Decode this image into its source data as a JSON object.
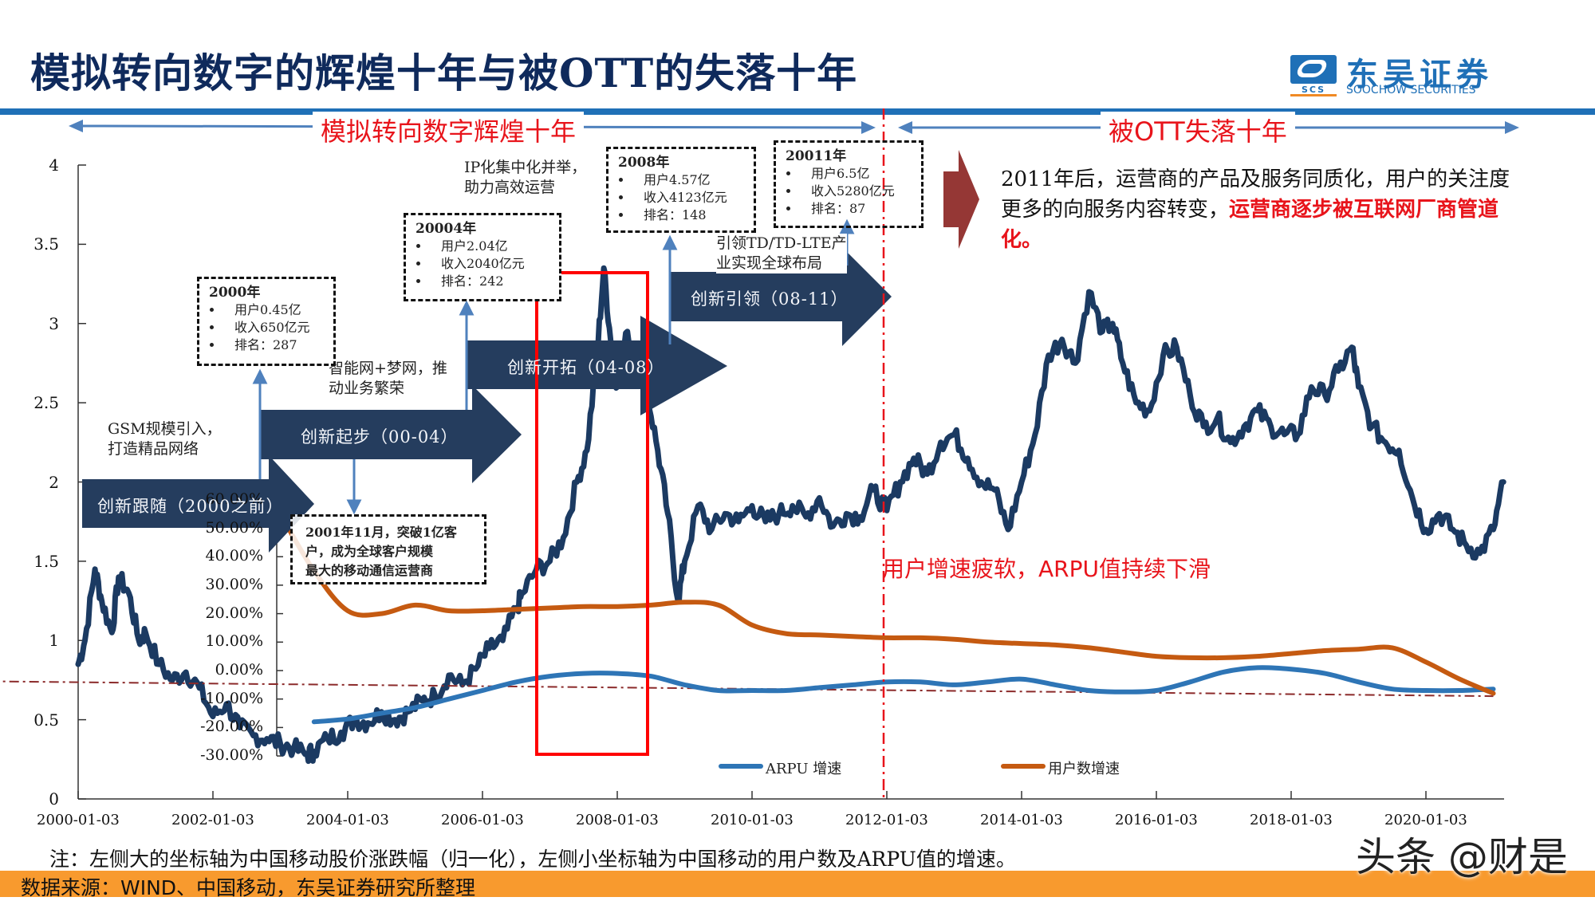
{
  "header": {
    "title": "模拟转向数字的辉煌十年与被OTT的失落十年",
    "logo": {
      "cn": "东吴证券",
      "en": "SOOCHOW SECURITIES",
      "abbr": "SCS"
    },
    "rule_color": "#1f70b7"
  },
  "eras": [
    {
      "label": "模拟转向数字辉煌十年",
      "direction": "both"
    },
    {
      "label": "被OTT失落十年",
      "direction": "both"
    }
  ],
  "phases": [
    {
      "label": "创新跟随（2000之前）"
    },
    {
      "label": "创新起步（00-04）"
    },
    {
      "label": "创新开拓（04-08）"
    },
    {
      "label": "创新引领（08-11）"
    }
  ],
  "phase_notes": [
    {
      "text": [
        "GSM规模引入，",
        "打造精品网络"
      ]
    },
    {
      "text": [
        "智能网+梦网，推",
        "动业务繁荣"
      ]
    },
    {
      "text": [
        "IP化集中化并举，",
        "助力高效运营"
      ]
    },
    {
      "text": [
        "引领TD/TD-LTE产",
        "业实现全球布局"
      ]
    }
  ],
  "milestones": [
    {
      "year": "2000年",
      "items": [
        "用户0.45亿",
        "收入650亿元",
        "排名：287"
      ]
    },
    {
      "year": "20004年",
      "items": [
        "用户2.04亿",
        "收入2040亿元",
        "排名：242"
      ]
    },
    {
      "year": "2008年",
      "items": [
        "用户4.57亿",
        "收入4123亿元",
        "排名：148"
      ]
    },
    {
      "year": "20011年",
      "items": [
        "用户6.5亿",
        "收入5280亿元",
        "排名：87"
      ]
    }
  ],
  "event_box": {
    "text": [
      "2001年11月，突破1亿客",
      "户，成为全球客户规模",
      "最大的移动通信运营商"
    ]
  },
  "summary": {
    "normal": "2011年后，运营商的产品及服务同质化，用户的关注度更多的向服务内容转变，",
    "highlight": "运营商逐步被互联网厂商管道化。"
  },
  "decline_note": "用户增速疲软，ARPU值持续下滑",
  "footnote": "注：左侧大的坐标轴为中国移动股价涨跌幅（归一化），左侧小坐标轴为中国移动的用户数及ARPU值的增速。",
  "source": "数据来源：WIND、中国移动，东吴证券研究所整理",
  "watermark": "头条 @财是",
  "colors": {
    "price": "#1b3a62",
    "arpu": "#2e75b6",
    "users": "#c55a11",
    "phase_arrow": "#253d5e",
    "highlight_box": "#ff0000",
    "divider": "#e8141b",
    "trend": "#8b2a2a",
    "big_arrow": "#953735"
  },
  "chart_data": [
    {
      "type": "line",
      "title": "中国移动股价涨跌幅（归一化）",
      "xlabel": "",
      "ylabel": "",
      "x_ticks": [
        "2000-01-03",
        "2002-01-03",
        "2004-01-03",
        "2006-01-03",
        "2008-01-03",
        "2010-01-03",
        "2012-01-03",
        "2014-01-03",
        "2016-01-03",
        "2018-01-03",
        "2020-01-03"
      ],
      "y_ticks": [
        "0",
        "0.5",
        "1",
        "1.5",
        "2",
        "2.5",
        "3",
        "3.5",
        "4"
      ],
      "ylim": [
        0,
        4
      ],
      "grid": false,
      "series": [
        {
          "name": "中国移动股价（归一化）",
          "x": [
            0,
            0.1,
            0.25,
            0.35,
            0.5,
            0.6,
            0.75,
            0.9,
            1.0,
            1.2,
            1.4,
            1.6,
            1.8,
            2.0,
            2.2,
            2.4,
            2.6,
            2.8,
            3.0,
            3.2,
            3.4,
            3.5,
            3.7,
            3.9,
            4.1,
            4.3,
            4.5,
            4.7,
            4.9,
            5.1,
            5.3,
            5.5,
            5.7,
            5.9,
            6.1,
            6.3,
            6.5,
            6.6,
            6.8,
            7.0,
            7.2,
            7.4,
            7.55,
            7.7,
            7.8,
            7.9,
            8.0,
            8.15,
            8.3,
            8.45,
            8.6,
            8.75,
            8.9,
            9.0,
            9.2,
            9.4,
            9.6,
            9.8,
            10.0,
            10.2,
            10.4,
            10.6,
            10.8,
            11.0,
            11.2,
            11.4,
            11.6,
            11.8,
            12.0,
            12.2,
            12.4,
            12.6,
            12.8,
            13.0,
            13.2,
            13.4,
            13.6,
            13.8,
            14.0,
            14.2,
            14.4,
            14.6,
            14.8,
            15.0,
            15.2,
            15.35,
            15.5,
            15.7,
            15.9,
            16.1,
            16.3,
            16.5,
            16.7,
            16.9,
            17.1,
            17.3,
            17.5,
            17.7,
            17.9,
            18.1,
            18.3,
            18.5,
            18.7,
            18.9,
            19.0,
            19.2,
            19.4,
            19.6,
            19.8,
            20.0,
            20.2,
            20.4,
            20.6,
            20.8,
            21.0,
            21.15
          ],
          "values": [
            0.85,
            1.0,
            1.45,
            1.25,
            1.05,
            1.4,
            1.3,
            1.0,
            1.05,
            0.85,
            0.75,
            0.8,
            0.7,
            0.52,
            0.6,
            0.45,
            0.4,
            0.38,
            0.35,
            0.32,
            0.28,
            0.3,
            0.38,
            0.42,
            0.5,
            0.48,
            0.55,
            0.5,
            0.55,
            0.62,
            0.65,
            0.78,
            0.72,
            0.82,
            0.95,
            1.0,
            1.2,
            1.3,
            1.45,
            1.5,
            1.65,
            2.0,
            2.2,
            2.8,
            3.35,
            2.9,
            2.6,
            2.95,
            2.75,
            2.55,
            2.2,
            1.8,
            1.25,
            1.5,
            1.85,
            1.7,
            1.8,
            1.75,
            1.85,
            1.75,
            1.8,
            1.85,
            1.78,
            1.9,
            1.72,
            1.8,
            1.78,
            1.95,
            1.82,
            2.0,
            2.15,
            2.05,
            2.25,
            2.3,
            2.15,
            2.0,
            1.95,
            1.7,
            2.0,
            2.3,
            2.8,
            2.9,
            2.75,
            3.2,
            2.95,
            3.0,
            2.75,
            2.5,
            2.45,
            2.8,
            2.85,
            2.55,
            2.35,
            2.4,
            2.25,
            2.35,
            2.45,
            2.35,
            2.3,
            2.3,
            2.6,
            2.55,
            2.7,
            2.85,
            2.6,
            2.35,
            2.25,
            2.2,
            1.9,
            1.7,
            1.8,
            1.7,
            1.6,
            1.55,
            1.7,
            2.0
          ]
        }
      ]
    },
    {
      "type": "line",
      "title": "中国移动的用户数及ARPU值的增速",
      "y_ticks": [
        "-30.00%",
        "-20.00%",
        "-10.00%",
        "0.00%",
        "10.00%",
        "20.00%",
        "30.00%",
        "40.00%",
        "50.00%",
        "60.00%"
      ],
      "ylim": [
        -30,
        60
      ],
      "legend_position": "bottom",
      "series": [
        {
          "name": "ARPU 增速",
          "x": [
            3.5,
            4.0,
            4.5,
            5.0,
            5.5,
            6.0,
            6.5,
            7.0,
            7.5,
            8.0,
            8.5,
            9.0,
            9.5,
            10.0,
            10.5,
            11.0,
            11.5,
            12.0,
            12.5,
            13.0,
            13.5,
            14.0,
            14.5,
            15.0,
            15.5,
            16.0,
            16.5,
            17.0,
            17.5,
            18.0,
            18.5,
            19.0,
            19.5,
            20.0,
            20.5,
            21.0
          ],
          "values": [
            -18,
            -17,
            -15,
            -13,
            -10,
            -7,
            -4,
            -2,
            -1,
            -1,
            -2,
            -5,
            -7,
            -7,
            -7,
            -6,
            -5,
            -4,
            -4,
            -5,
            -4,
            -3,
            -5,
            -7,
            -7.5,
            -7,
            -4,
            -0.5,
            1,
            0.5,
            -1,
            -4,
            -6.5,
            -7,
            -7,
            -6.5
          ]
        },
        {
          "name": "用户数增速",
          "x": [
            3.0,
            3.5,
            4.0,
            4.5,
            5.0,
            5.5,
            6.0,
            6.5,
            7.0,
            7.5,
            8.0,
            8.5,
            9.0,
            9.5,
            10.0,
            10.5,
            11.0,
            11.5,
            12.0,
            12.5,
            13.0,
            13.5,
            14.0,
            14.5,
            15.0,
            15.5,
            16.0,
            16.5,
            17.0,
            17.5,
            18.0,
            18.5,
            19.0,
            19.5,
            20.0,
            20.5,
            21.0
          ],
          "values": [
            55,
            35,
            21,
            20,
            23,
            21,
            21,
            21.5,
            22,
            22.5,
            22.5,
            23,
            24,
            23,
            16,
            13,
            12.5,
            12,
            11.5,
            11.5,
            11,
            10,
            9.5,
            9,
            8,
            6.5,
            5,
            4.5,
            4.5,
            5,
            6,
            7,
            7.5,
            8,
            3,
            -3,
            -8
          ]
        },
        {
          "name": "趋势线",
          "style": "dash-dot",
          "x": [
            -2.5,
            21.0
          ],
          "values": [
            -3.5,
            -9
          ]
        }
      ]
    }
  ],
  "axes": {
    "primary": {
      "ticks": [
        "4",
        "3.5",
        "3",
        "2.5",
        "2",
        "1.5",
        "1",
        "0.5",
        "0"
      ]
    },
    "secondary": {
      "ticks": [
        "60.00%",
        "50.00%",
        "40.00%",
        "30.00%",
        "20.00%",
        "10.00%",
        "0.00%",
        "-10.00%",
        "-20.00%",
        "-30.00%"
      ]
    },
    "x": {
      "ticks": [
        "2000-01-03",
        "2002-01-03",
        "2004-01-03",
        "2006-01-03",
        "2008-01-03",
        "2010-01-03",
        "2012-01-03",
        "2014-01-03",
        "2016-01-03",
        "2018-01-03",
        "2020-01-03"
      ]
    }
  },
  "legend": [
    {
      "label": "ARPU 增速",
      "color": "#2e75b6"
    },
    {
      "label": "用户数增速",
      "color": "#c55a11"
    }
  ]
}
